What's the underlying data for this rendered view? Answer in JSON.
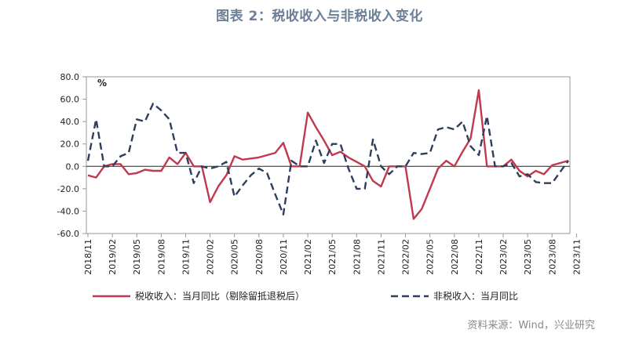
{
  "title": "图表 2：税收收入与非税收入变化",
  "source": "资料来源：Wind，兴业研究",
  "chart_data": {
    "type": "line",
    "unit_label": "%",
    "ylim": [
      -60,
      80
    ],
    "yticks": [
      "80.0",
      "60.0",
      "40.0",
      "20.0",
      "0.0",
      "-20.0",
      "-40.0",
      "-60.0"
    ],
    "x_tick_labels": [
      "2018/11",
      "2019/02",
      "2019/05",
      "2019/08",
      "2019/11",
      "2020/02",
      "2020/05",
      "2020/08",
      "2020/11",
      "2021/02",
      "2021/05",
      "2021/08",
      "2021/11",
      "2022/02",
      "2022/05",
      "2022/08",
      "2022/11",
      "2023/02",
      "2023/05",
      "2023/08",
      "2023/11"
    ],
    "series": [
      {
        "name": "税收收入：当月同比（剔除留抵退税后）",
        "color": "#c0394f",
        "style": "solid",
        "values": [
          -8,
          -10,
          0,
          2,
          2,
          -7,
          -6,
          -3,
          -4,
          -4,
          8,
          2,
          12,
          0,
          0,
          -32,
          -18,
          -8,
          9,
          6,
          7,
          8,
          10,
          12,
          21,
          0,
          0,
          48,
          35,
          23,
          10,
          13,
          8,
          4,
          0,
          -13,
          -18,
          0,
          0,
          0,
          -47,
          -38,
          -20,
          -2,
          5,
          0,
          13,
          25,
          68,
          0,
          0,
          0,
          6,
          -4,
          -9,
          -4,
          -7,
          1,
          3,
          5
        ]
      },
      {
        "name": "非税收入：当月同比",
        "color": "#2f3e5c",
        "style": "dashed",
        "values": [
          5,
          42,
          0,
          0,
          9,
          12,
          42,
          40,
          56,
          50,
          42,
          12,
          12,
          -15,
          0,
          -2,
          0,
          4,
          -27,
          -17,
          -8,
          -2,
          -6,
          -25,
          -43,
          5,
          0,
          0,
          23,
          3,
          20,
          20,
          -2,
          -20,
          -20,
          24,
          0,
          -7,
          0,
          0,
          12,
          11,
          12,
          33,
          35,
          33,
          40,
          18,
          10,
          45,
          0,
          0,
          3,
          -9,
          -7,
          -14,
          -15,
          -15,
          -5,
          5
        ]
      }
    ]
  }
}
